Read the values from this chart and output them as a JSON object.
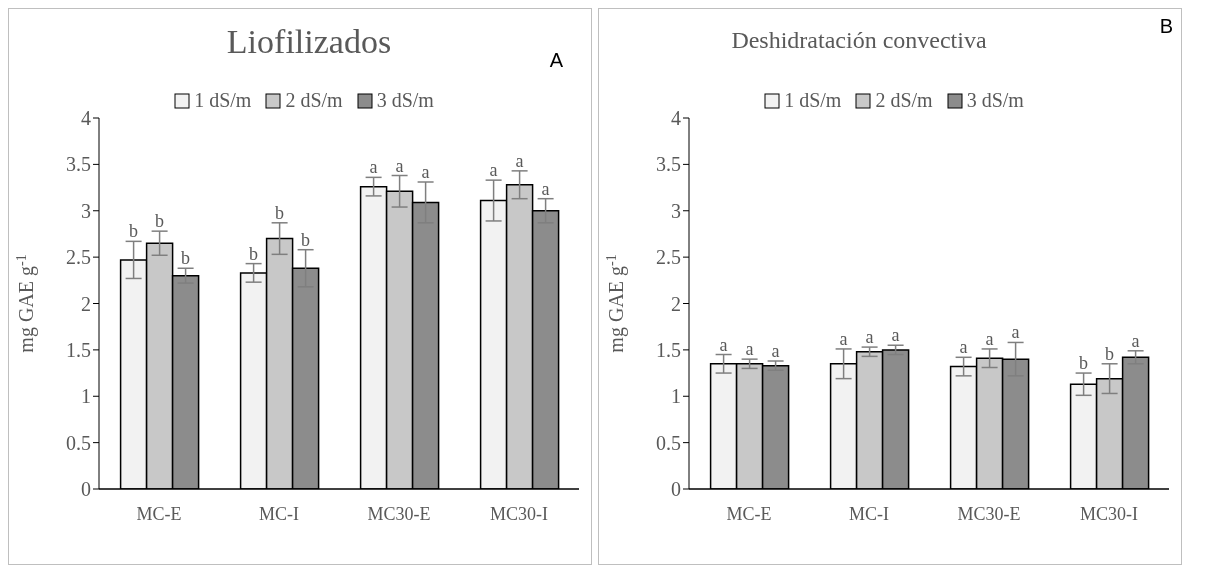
{
  "chart_data": [
    {
      "type": "bar",
      "title": "Liofilizados",
      "ylabel": "mg GAE g$^{-1}$",
      "annotations": [
        "A"
      ],
      "categories": [
        "MC-E",
        "MC-I",
        "MC30-E",
        "MC30-I"
      ],
      "legend": "top",
      "ylim": [
        0,
        4
      ],
      "yticks": [
        0,
        0.5,
        1,
        1.5,
        2,
        2.5,
        3,
        3.5,
        4
      ],
      "series": [
        {
          "name": "1 dS/m",
          "color": "#f2f2f2",
          "values": [
            2.47,
            2.33,
            3.26,
            3.11
          ],
          "errors": [
            0.2,
            0.1,
            0.1,
            0.22
          ],
          "value_labels": [
            "b",
            "b",
            "a",
            "a"
          ]
        },
        {
          "name": "2 dS/m",
          "color": "#c8c8c8",
          "values": [
            2.65,
            2.7,
            3.21,
            3.28
          ],
          "errors": [
            0.13,
            0.17,
            0.17,
            0.15
          ],
          "value_labels": [
            "b",
            "b",
            "a",
            "a"
          ]
        },
        {
          "name": "3 dS/m",
          "color": "#8c8c8c",
          "values": [
            2.3,
            2.38,
            3.09,
            3.0
          ],
          "errors": [
            0.08,
            0.2,
            0.22,
            0.13
          ],
          "value_labels": [
            "b",
            "b",
            "a",
            "a"
          ]
        }
      ]
    },
    {
      "type": "bar",
      "title": "Deshidratación convectiva",
      "ylabel": "mg GAE g$^{-1}$",
      "annotations": [
        "B"
      ],
      "categories": [
        "MC-E",
        "MC-I",
        "MC30-E",
        "MC30-I"
      ],
      "legend": "top",
      "ylim": [
        0,
        4
      ],
      "yticks": [
        0,
        0.5,
        1,
        1.5,
        2,
        2.5,
        3,
        3.5,
        4
      ],
      "series": [
        {
          "name": "1 dS/m",
          "color": "#f2f2f2",
          "values": [
            1.35,
            1.35,
            1.32,
            1.13
          ],
          "errors": [
            0.1,
            0.16,
            0.1,
            0.12
          ],
          "value_labels": [
            "a",
            "a",
            "a",
            "b"
          ]
        },
        {
          "name": "2 dS/m",
          "color": "#c8c8c8",
          "values": [
            1.35,
            1.48,
            1.41,
            1.19
          ],
          "errors": [
            0.05,
            0.05,
            0.1,
            0.16
          ],
          "value_labels": [
            "a",
            "a",
            "a",
            "b"
          ]
        },
        {
          "name": "3 dS/m",
          "color": "#8c8c8c",
          "values": [
            1.33,
            1.5,
            1.4,
            1.42
          ],
          "errors": [
            0.05,
            0.05,
            0.18,
            0.07
          ],
          "value_labels": [
            "a",
            "a",
            "a",
            "a"
          ]
        }
      ]
    }
  ]
}
